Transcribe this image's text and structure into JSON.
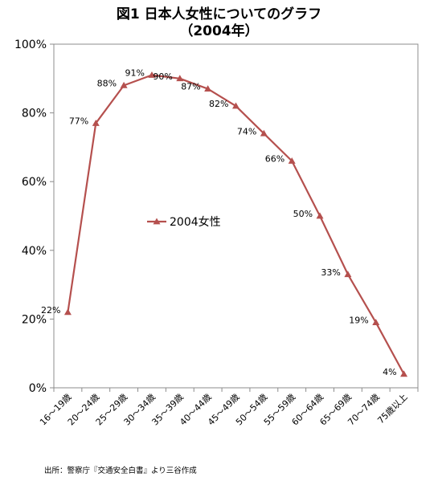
{
  "chart_data": {
    "type": "line",
    "title": "図1 日本人女性についてのグラフ",
    "subtitle": "（2004年）",
    "categories": [
      "16～19歳",
      "20～24歳",
      "25～29歳",
      "30～34歳",
      "35～39歳",
      "40～44歳",
      "45～49歳",
      "50～54歳",
      "55～59歳",
      "60～64歳",
      "65～69歳",
      "70～74歳",
      "75歳以上"
    ],
    "series": [
      {
        "name": "2004女性",
        "values": [
          22,
          77,
          88,
          91,
          90,
          87,
          82,
          74,
          66,
          50,
          33,
          19,
          4
        ],
        "labels": [
          "22%",
          "77%",
          "88%",
          "91%",
          "90%",
          "87%",
          "82%",
          "74%",
          "66%",
          "50%",
          "33%",
          "19%",
          "4%"
        ],
        "color": "#B5504E"
      }
    ],
    "y_ticks": [
      "0%",
      "20%",
      "40%",
      "60%",
      "80%",
      "100%"
    ],
    "ylim": [
      0,
      100
    ],
    "grid": false,
    "legend": "center"
  },
  "source_note": "出所：警察庁『交通安全白書』より三谷作成"
}
